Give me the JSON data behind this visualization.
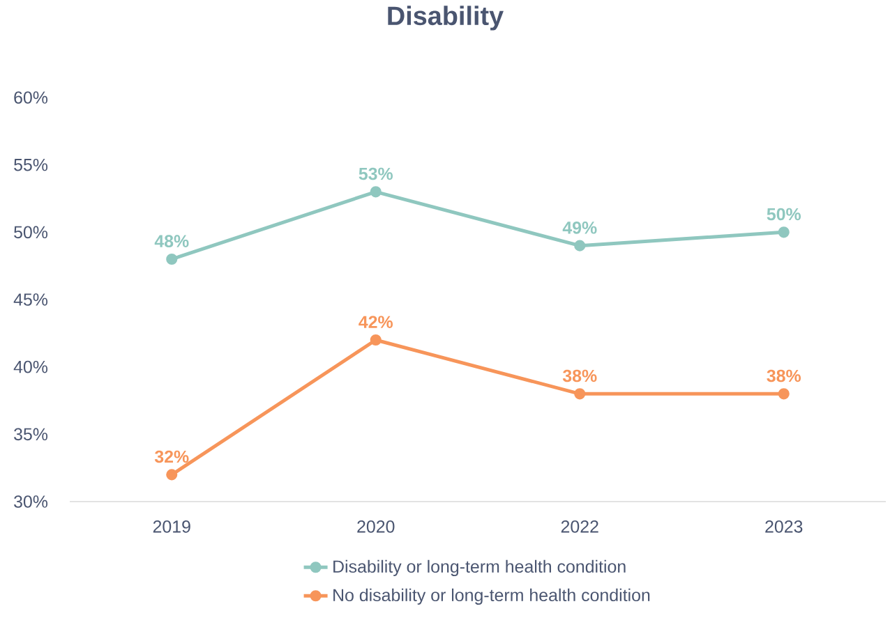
{
  "chart_data": {
    "type": "line",
    "title": "Disability",
    "categories": [
      "2019",
      "2020",
      "2022",
      "2023"
    ],
    "series": [
      {
        "name": "Disability or long-term health condition",
        "color": "#8fc7bf",
        "values": [
          48,
          53,
          49,
          50
        ],
        "value_labels": [
          "48%",
          "53%",
          "49%",
          "50%"
        ]
      },
      {
        "name": "No disability or long-term health condition",
        "color": "#f7955a",
        "values": [
          32,
          42,
          38,
          38
        ],
        "value_labels": [
          "32%",
          "42%",
          "38%",
          "38%"
        ]
      }
    ],
    "ylim": [
      30,
      60
    ],
    "yticks": [
      {
        "value": 30,
        "label": "30%"
      },
      {
        "value": 35,
        "label": "35%"
      },
      {
        "value": 40,
        "label": "40%"
      },
      {
        "value": 45,
        "label": "45%"
      },
      {
        "value": 50,
        "label": "50%"
      },
      {
        "value": 55,
        "label": "55%"
      },
      {
        "value": 60,
        "label": "60%"
      }
    ],
    "legend": "bottom",
    "marker": "circle",
    "line_style": "solid",
    "grid": false
  }
}
